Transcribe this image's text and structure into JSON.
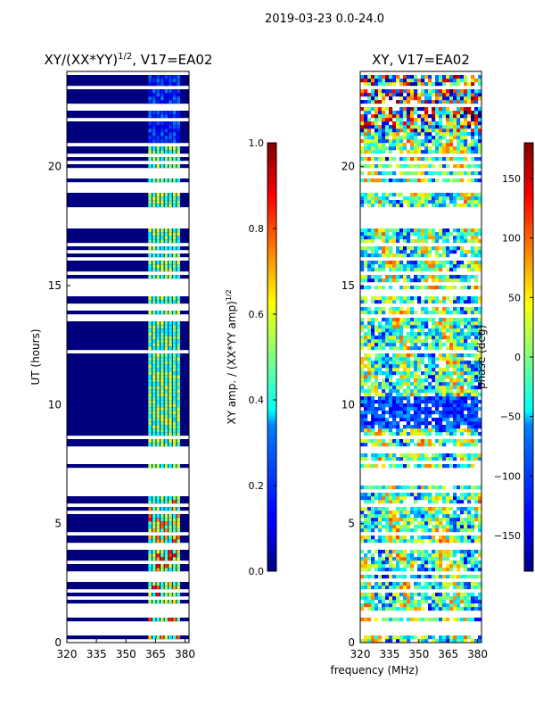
{
  "figure": {
    "suptitle": "2019-03-23 0.0-24.0",
    "colors": {
      "jet_min": "#00007f",
      "jet_max": "#7f0000",
      "axis": "#000000",
      "background": "#ffffff"
    }
  },
  "chart_data": [
    {
      "type": "heatmap",
      "title_main": "XY/(XX*YY)",
      "title_sup": "1/2",
      "title_tail": ", V17=EA02",
      "xlabel": "",
      "ylabel": "UT (hours)",
      "xlim": [
        320,
        382
      ],
      "ylim": [
        0,
        24
      ],
      "xticks": [
        "320",
        "335",
        "350",
        "365",
        "380"
      ],
      "xtick_values": [
        320,
        335,
        350,
        365,
        380
      ],
      "yticks": [
        "0",
        "5",
        "10",
        "15",
        "20"
      ],
      "ytick_values": [
        0,
        5,
        10,
        15,
        20
      ],
      "colorbar": {
        "label_main": "XY amp. / (XX*YY amp)",
        "label_sup": "1/2",
        "range": [
          0.0,
          1.0
        ],
        "ticks": [
          "0.0",
          "0.2",
          "0.4",
          "0.6",
          "0.8",
          "1.0"
        ],
        "tick_values": [
          0.0,
          0.2,
          0.4,
          0.6,
          0.8,
          1.0
        ]
      }
    },
    {
      "type": "heatmap",
      "title": "XY, V17=EA02",
      "xlabel": "frequency (MHz)",
      "ylabel": "",
      "xlim": [
        320,
        382
      ],
      "ylim": [
        0,
        24
      ],
      "xticks": [
        "320",
        "335",
        "350",
        "365",
        "380"
      ],
      "xtick_values": [
        320,
        335,
        350,
        365,
        380
      ],
      "yticks": [
        "0",
        "5",
        "10",
        "15",
        "20"
      ],
      "ytick_values": [
        0,
        5,
        10,
        15,
        20
      ],
      "colorbar": {
        "label": "phase (deg)",
        "range": [
          -180,
          180
        ],
        "ticks": [
          "−150",
          "−100",
          "−50",
          "0",
          "50",
          "100",
          "150"
        ],
        "tick_values": [
          -150,
          -100,
          -50,
          0,
          50,
          100,
          150
        ]
      }
    }
  ]
}
